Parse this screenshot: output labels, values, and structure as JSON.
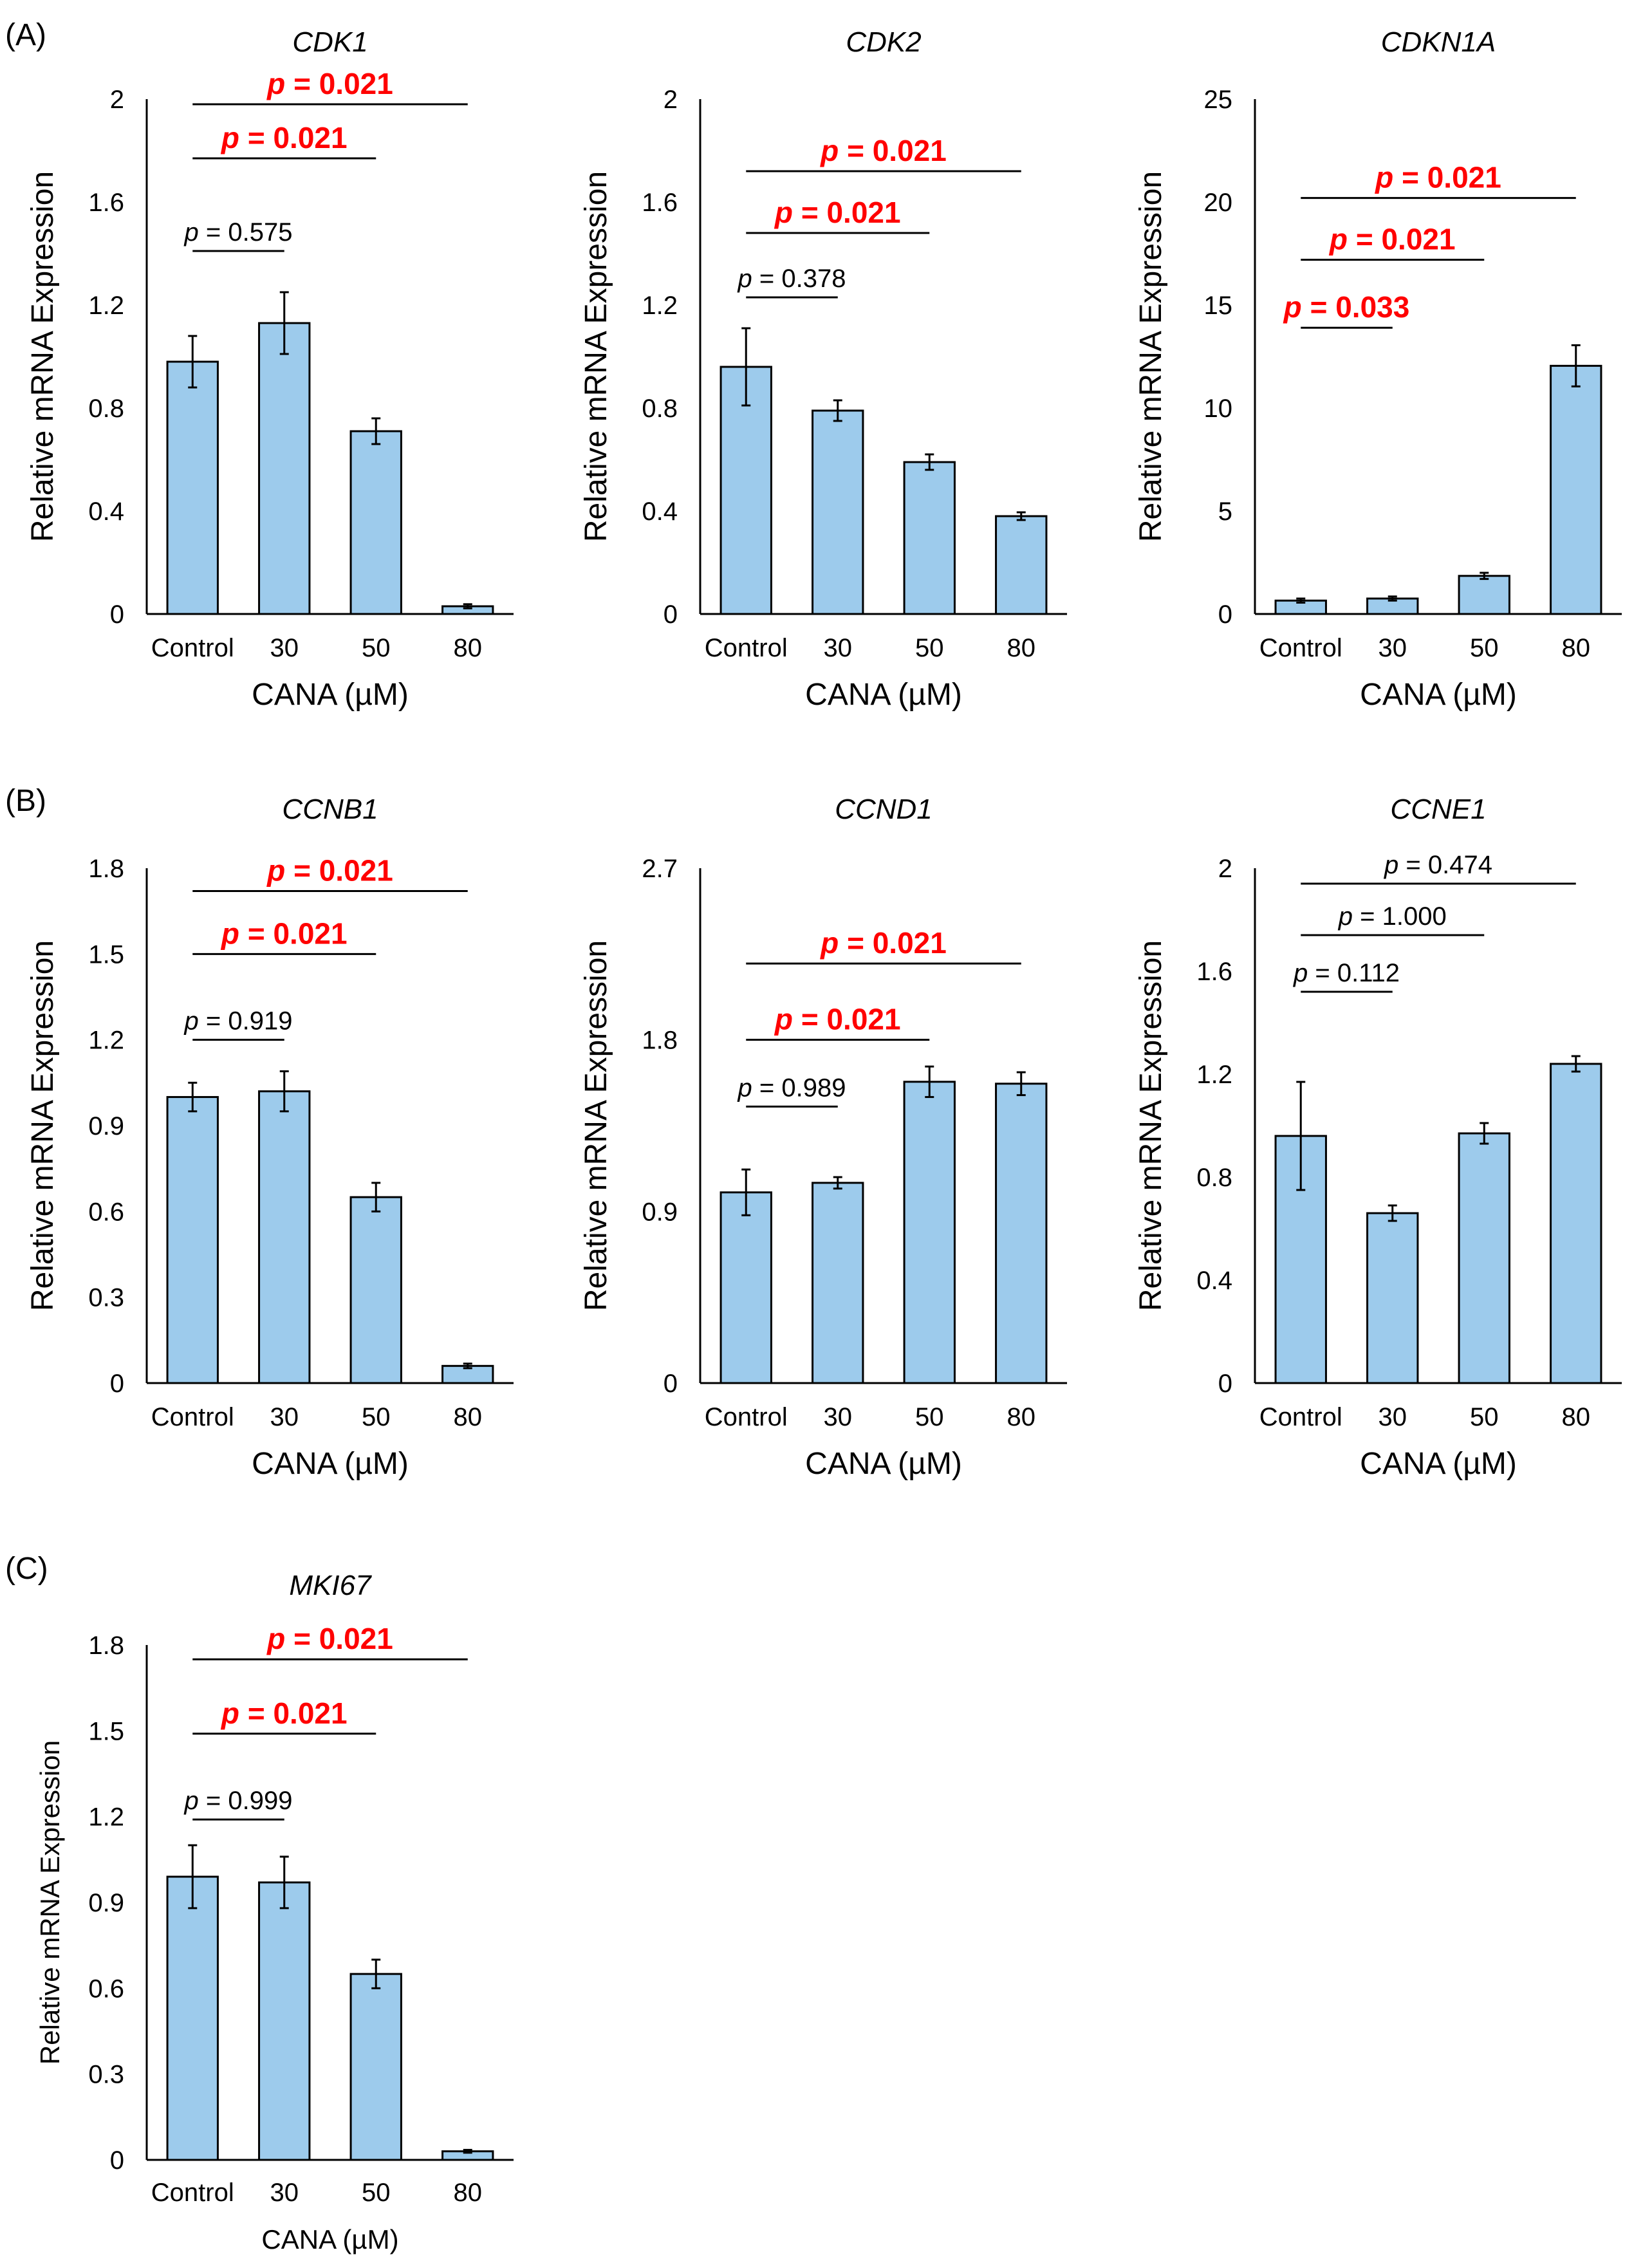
{
  "colors": {
    "bar_fill": "#9dcbec",
    "bar_stroke": "#000000",
    "significant": "#ff0000",
    "normal": "#000000"
  },
  "panels": [
    {
      "id": "A",
      "label": "(A)"
    },
    {
      "id": "B",
      "label": "(B)"
    },
    {
      "id": "C",
      "label": "(C)"
    }
  ],
  "chart_data": [
    {
      "panel": "A",
      "type": "bar",
      "title": "CDK1",
      "xlabel": "CANA (µM)",
      "ylabel": "Relative mRNA Expression",
      "categories": [
        "Control",
        "30",
        "50",
        "80"
      ],
      "values": [
        0.98,
        1.13,
        0.71,
        0.03
      ],
      "errors": [
        0.1,
        0.12,
        0.05,
        0.008
      ],
      "ylim": [
        0,
        2
      ],
      "yticks": [
        "0",
        "0.4",
        "0.8",
        "1.2",
        "1.6",
        "2"
      ],
      "comparisons": [
        {
          "from": 0,
          "to": 1,
          "text": "= 0.575",
          "significant": false,
          "level": 1.41
        },
        {
          "from": 0,
          "to": 2,
          "text": "= 0.021",
          "significant": true,
          "level": 1.77
        },
        {
          "from": 0,
          "to": 3,
          "text": "= 0.021",
          "significant": true,
          "level": 1.98
        }
      ]
    },
    {
      "panel": "A",
      "type": "bar",
      "title": "CDK2",
      "xlabel": "CANA (µM)",
      "ylabel": "Relative mRNA Expression",
      "categories": [
        "Control",
        "30",
        "50",
        "80"
      ],
      "values": [
        0.96,
        0.79,
        0.59,
        0.38
      ],
      "errors": [
        0.15,
        0.04,
        0.03,
        0.015
      ],
      "ylim": [
        0,
        2
      ],
      "yticks": [
        "0",
        "0.4",
        "0.8",
        "1.2",
        "1.6",
        "2"
      ],
      "comparisons": [
        {
          "from": 0,
          "to": 1,
          "text": "= 0.378",
          "significant": false,
          "level": 1.23
        },
        {
          "from": 0,
          "to": 2,
          "text": "= 0.021",
          "significant": true,
          "level": 1.48
        },
        {
          "from": 0,
          "to": 3,
          "text": "= 0.021",
          "significant": true,
          "level": 1.72
        }
      ]
    },
    {
      "panel": "A",
      "type": "bar",
      "title": "CDKN1A",
      "xlabel": "CANA (µM)",
      "ylabel": "Relative mRNA Expression",
      "categories": [
        "Control",
        "30",
        "50",
        "80"
      ],
      "values": [
        0.65,
        0.75,
        1.85,
        12.05
      ],
      "errors": [
        0.1,
        0.1,
        0.15,
        1.0
      ],
      "ylim": [
        0,
        25
      ],
      "yticks": [
        "0",
        "5",
        "10",
        "15",
        "20",
        "25"
      ],
      "comparisons": [
        {
          "from": 0,
          "to": 1,
          "text": "= 0.033",
          "significant": true,
          "level": 13.9
        },
        {
          "from": 0,
          "to": 2,
          "text": "= 0.021",
          "significant": true,
          "level": 17.2
        },
        {
          "from": 0,
          "to": 3,
          "text": "= 0.021",
          "significant": true,
          "level": 20.2
        }
      ]
    },
    {
      "panel": "B",
      "type": "bar",
      "title": "CCNB1",
      "xlabel": "CANA (µM)",
      "ylabel": "Relative mRNA Expression",
      "categories": [
        "Control",
        "30",
        "50",
        "80"
      ],
      "values": [
        1.0,
        1.02,
        0.65,
        0.06
      ],
      "errors": [
        0.05,
        0.07,
        0.05,
        0.008
      ],
      "ylim": [
        0,
        1.8
      ],
      "yticks": [
        "0",
        "0.3",
        "0.6",
        "0.9",
        "1.2",
        "1.5",
        "1.8"
      ],
      "comparisons": [
        {
          "from": 0,
          "to": 1,
          "text": "= 0.919",
          "significant": false,
          "level": 1.2
        },
        {
          "from": 0,
          "to": 2,
          "text": "= 0.021",
          "significant": true,
          "level": 1.5
        },
        {
          "from": 0,
          "to": 3,
          "text": "= 0.021",
          "significant": true,
          "level": 1.72
        }
      ]
    },
    {
      "panel": "B",
      "type": "bar",
      "title": "CCND1",
      "xlabel": "CANA (µM)",
      "ylabel": "Relative mRNA Expression",
      "categories": [
        "Control",
        "30",
        "50",
        "80"
      ],
      "values": [
        1.0,
        1.05,
        1.58,
        1.57
      ],
      "errors": [
        0.12,
        0.03,
        0.08,
        0.06
      ],
      "ylim": [
        0,
        2.7
      ],
      "yticks": [
        "0",
        "0.9",
        "1.8",
        "2.7"
      ],
      "comparisons": [
        {
          "from": 0,
          "to": 1,
          "text": "= 0.989",
          "significant": false,
          "level": 1.45
        },
        {
          "from": 0,
          "to": 2,
          "text": "= 0.021",
          "significant": true,
          "level": 1.8
        },
        {
          "from": 0,
          "to": 3,
          "text": "= 0.021",
          "significant": true,
          "level": 2.2
        }
      ]
    },
    {
      "panel": "B",
      "type": "bar",
      "title": "CCNE1",
      "xlabel": "CANA (µM)",
      "ylabel": "Relative mRNA Expression",
      "categories": [
        "Control",
        "30",
        "50",
        "80"
      ],
      "values": [
        0.96,
        0.66,
        0.97,
        1.24
      ],
      "errors": [
        0.21,
        0.03,
        0.04,
        0.03
      ],
      "ylim": [
        0,
        2
      ],
      "yticks": [
        "0",
        "0.4",
        "0.8",
        "1.2",
        "1.6",
        "2"
      ],
      "comparisons": [
        {
          "from": 0,
          "to": 1,
          "text": "= 0.112",
          "significant": false,
          "level": 1.52
        },
        {
          "from": 0,
          "to": 2,
          "text": "= 1.000",
          "significant": false,
          "level": 1.74
        },
        {
          "from": 0,
          "to": 3,
          "text": "= 0.474",
          "significant": false,
          "level": 1.94
        }
      ]
    },
    {
      "panel": "C",
      "type": "bar",
      "title": "MKI67",
      "xlabel": "CANA (µM)",
      "ylabel": "Relative mRNA Expression",
      "categories": [
        "Control",
        "30",
        "50",
        "80"
      ],
      "values": [
        0.99,
        0.97,
        0.65,
        0.03
      ],
      "errors": [
        0.11,
        0.09,
        0.05,
        0.005
      ],
      "ylim": [
        0,
        1.8
      ],
      "yticks": [
        "0",
        "0.3",
        "0.6",
        "0.9",
        "1.2",
        "1.5",
        "1.8"
      ],
      "comparisons": [
        {
          "from": 0,
          "to": 1,
          "text": "= 0.999",
          "significant": false,
          "level": 1.19
        },
        {
          "from": 0,
          "to": 2,
          "text": "= 0.021",
          "significant": true,
          "level": 1.49
        },
        {
          "from": 0,
          "to": 3,
          "text": "= 0.021",
          "significant": true,
          "level": 1.75
        }
      ]
    }
  ]
}
